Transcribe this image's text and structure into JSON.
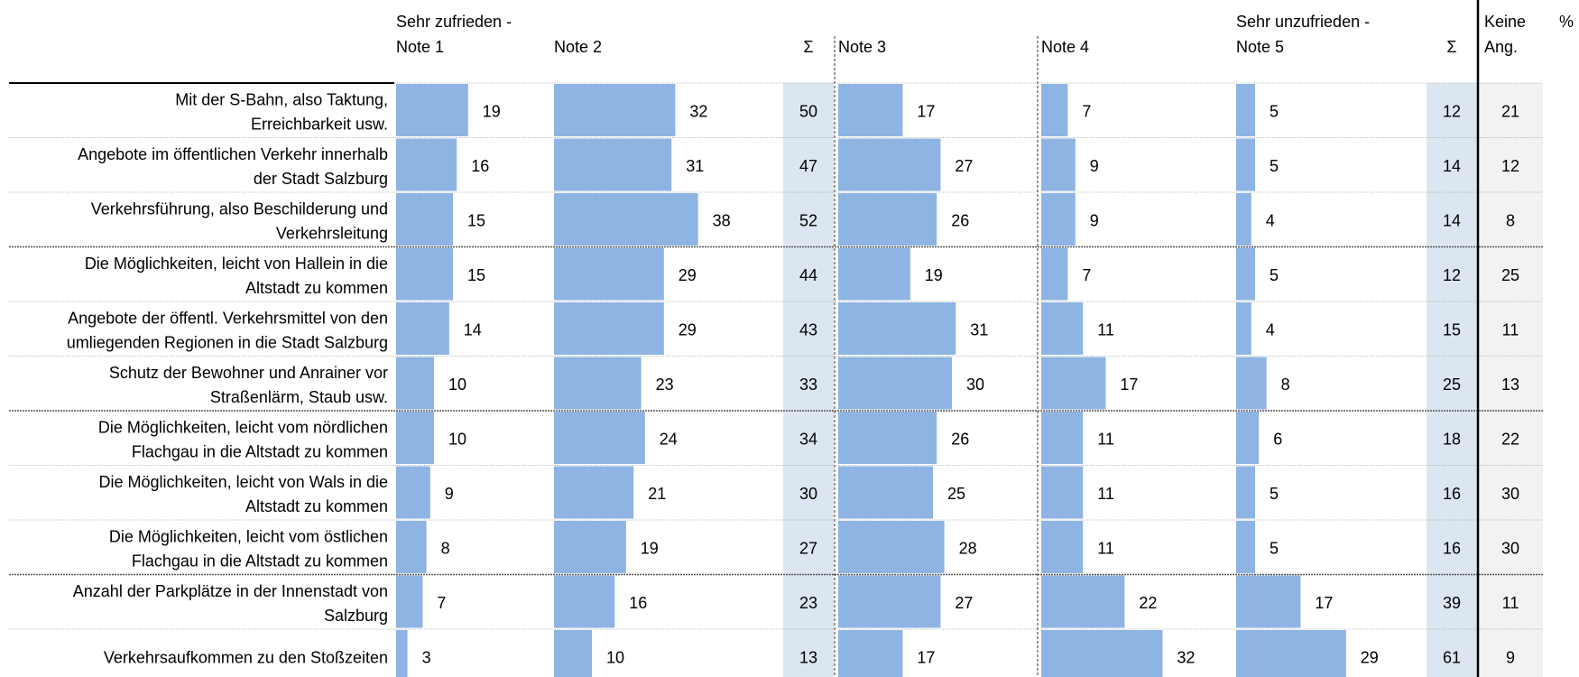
{
  "chart_data": {
    "type": "bar",
    "unit_label": "%",
    "columns": {
      "note1": [
        "Sehr zufrieden -",
        "Note 1"
      ],
      "note2": "Note 2",
      "sum_top": "Σ",
      "note3": "Note 3",
      "note4": "Note 4",
      "note5": [
        "Sehr unzufrieden -",
        "Note 5"
      ],
      "sum_bottom": "Σ",
      "keine": [
        "Keine",
        "Ang."
      ]
    },
    "rows": [
      {
        "label": [
          "Mit der S-Bahn, also Taktung,",
          "Erreichbarkeit usw."
        ],
        "note1": 19,
        "note2": 32,
        "sum_top": 50,
        "note3": 17,
        "note4": 7,
        "note5": 5,
        "sum_bottom": 12,
        "keine": 21
      },
      {
        "label": [
          "Angebote im öffentlichen Verkehr innerhalb",
          "der Stadt Salzburg"
        ],
        "note1": 16,
        "note2": 31,
        "sum_top": 47,
        "note3": 27,
        "note4": 9,
        "note5": 5,
        "sum_bottom": 14,
        "keine": 12
      },
      {
        "label": [
          "Verkehrsführung, also Beschilderung und",
          "Verkehrsleitung"
        ],
        "note1": 15,
        "note2": 38,
        "sum_top": 52,
        "note3": 26,
        "note4": 9,
        "note5": 4,
        "sum_bottom": 14,
        "keine": 8
      },
      {
        "label": [
          "Die Möglichkeiten, leicht von Hallein in die",
          "Altstadt zu kommen"
        ],
        "note1": 15,
        "note2": 29,
        "sum_top": 44,
        "note3": 19,
        "note4": 7,
        "note5": 5,
        "sum_bottom": 12,
        "keine": 25
      },
      {
        "label": [
          "Angebote der öffentl. Verkehrsmittel von den",
          "umliegenden Regionen in die Stadt Salzburg"
        ],
        "note1": 14,
        "note2": 29,
        "sum_top": 43,
        "note3": 31,
        "note4": 11,
        "note5": 4,
        "sum_bottom": 15,
        "keine": 11
      },
      {
        "label": [
          "Schutz der Bewohner und Anrainer vor",
          "Straßenlärm, Staub usw."
        ],
        "note1": 10,
        "note2": 23,
        "sum_top": 33,
        "note3": 30,
        "note4": 17,
        "note5": 8,
        "sum_bottom": 25,
        "keine": 13
      },
      {
        "label": [
          "Die Möglichkeiten, leicht vom nördlichen",
          "Flachgau in die Altstadt zu kommen"
        ],
        "note1": 10,
        "note2": 24,
        "sum_top": 34,
        "note3": 26,
        "note4": 11,
        "note5": 6,
        "sum_bottom": 18,
        "keine": 22
      },
      {
        "label": [
          "Die Möglichkeiten, leicht von Wals in die",
          "Altstadt zu kommen"
        ],
        "note1": 9,
        "note2": 21,
        "sum_top": 30,
        "note3": 25,
        "note4": 11,
        "note5": 5,
        "sum_bottom": 16,
        "keine": 30
      },
      {
        "label": [
          "Die Möglichkeiten, leicht vom östlichen",
          "Flachgau in die Altstadt zu kommen"
        ],
        "note1": 8,
        "note2": 19,
        "sum_top": 27,
        "note3": 28,
        "note4": 11,
        "note5": 5,
        "sum_bottom": 16,
        "keine": 30
      },
      {
        "label": [
          "Anzahl der Parkplätze in der Innenstadt von",
          "Salzburg"
        ],
        "note1": 7,
        "note2": 16,
        "sum_top": 23,
        "note3": 27,
        "note4": 22,
        "note5": 17,
        "sum_bottom": 39,
        "keine": 11
      },
      {
        "label": [
          "Verkehrsaufkommen zu den Stoßzeiten"
        ],
        "note1": 3,
        "note2": 10,
        "sum_top": 13,
        "note3": 17,
        "note4": 32,
        "note5": 29,
        "sum_bottom": 61,
        "keine": 9
      }
    ],
    "bar_color": "#8db4e2",
    "sum_shade_color": "#dce6f1",
    "keine_shade_color": "#f2f2f2"
  }
}
